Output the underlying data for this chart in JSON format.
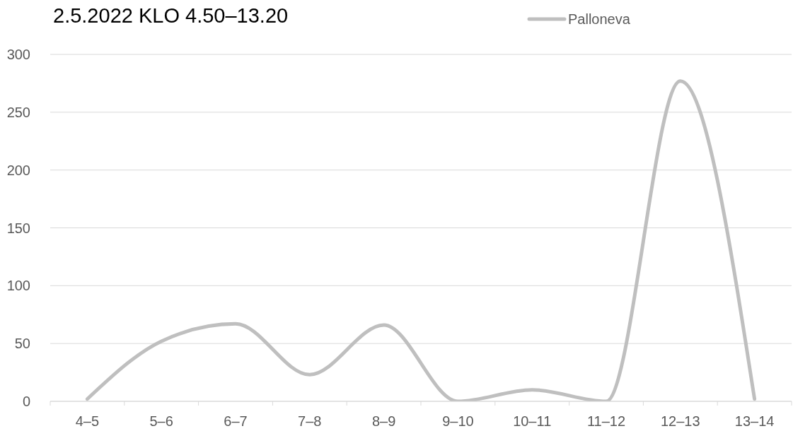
{
  "chart_data": {
    "type": "line",
    "title": "2.5.2022 KLO 4.50–13.20",
    "categories": [
      "4–5",
      "5–6",
      "6–7",
      "7–8",
      "8–9",
      "9–10",
      "10–11",
      "11–12",
      "12–13",
      "13–14"
    ],
    "series": [
      {
        "name": "Palloneva",
        "color": "#bfbfbf",
        "values": [
          2,
          52,
          67,
          23,
          66,
          0,
          10,
          0,
          277,
          2
        ]
      }
    ],
    "ylim": [
      0,
      300
    ],
    "yticks": [
      0,
      50,
      100,
      150,
      200,
      250,
      300
    ],
    "grid": "y",
    "legend": "top right",
    "marker": "none"
  }
}
